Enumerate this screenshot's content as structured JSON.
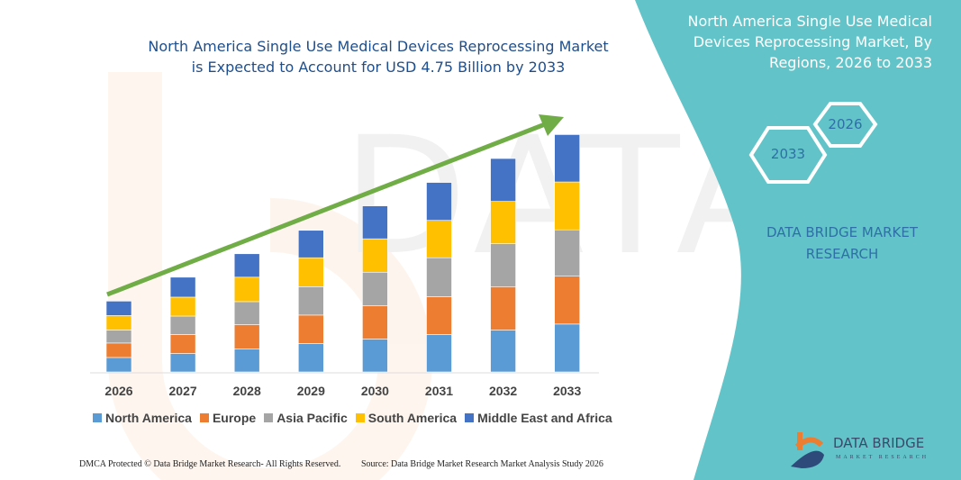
{
  "header": {
    "title_line1": "North America Single Use Medical Devices Reprocessing Market",
    "title_line2": "is Expected to Account for USD 4.75  Billion by 2033"
  },
  "side_panel": {
    "title_line1": "North America Single Use Medical",
    "title_line2": "Devices Reprocessing Market, By",
    "title_line3": "Regions, 2026 to 2033",
    "hex_start": "2026",
    "hex_end": "2033",
    "brand_line1": "DATA BRIDGE MARKET",
    "brand_line2": "RESEARCH",
    "logo_text": "DATA BRIDGE",
    "logo_subtext": "MARKET RESEARCH",
    "background_color": "#62c4c8"
  },
  "footer": {
    "left": "DMCA Protected © Data Bridge Market Research-  All Rights Reserved.",
    "right": "Source: Data Bridge Market Research  Market Analysis Study 2026"
  },
  "chart_data": {
    "type": "bar",
    "stacked": true,
    "categories": [
      "2026",
      "2027",
      "2028",
      "2029",
      "2030",
      "2031",
      "2032",
      "2033"
    ],
    "series": [
      {
        "name": "North America",
        "color": "#5b9bd5",
        "values": [
          0.29,
          0.37,
          0.46,
          0.57,
          0.66,
          0.75,
          0.84,
          0.96
        ]
      },
      {
        "name": "Europe",
        "color": "#ed7d31",
        "values": [
          0.29,
          0.38,
          0.49,
          0.57,
          0.67,
          0.76,
          0.87,
          0.96
        ]
      },
      {
        "name": "Asia Pacific",
        "color": "#a5a5a5",
        "values": [
          0.26,
          0.37,
          0.46,
          0.57,
          0.67,
          0.78,
          0.86,
          0.93
        ]
      },
      {
        "name": "South America",
        "color": "#ffc000",
        "values": [
          0.29,
          0.38,
          0.49,
          0.58,
          0.67,
          0.75,
          0.85,
          0.96
        ]
      },
      {
        "name": "Middle East and Africa",
        "color": "#4472c4",
        "values": [
          0.29,
          0.4,
          0.47,
          0.55,
          0.66,
          0.76,
          0.86,
          0.95
        ]
      }
    ],
    "unit": "USD Billion",
    "ylim": [
      0,
      4.75
    ],
    "y_axis_visible": false,
    "grid": false,
    "legend_position": "bottom",
    "trend_arrow_color": "#70ad47"
  }
}
